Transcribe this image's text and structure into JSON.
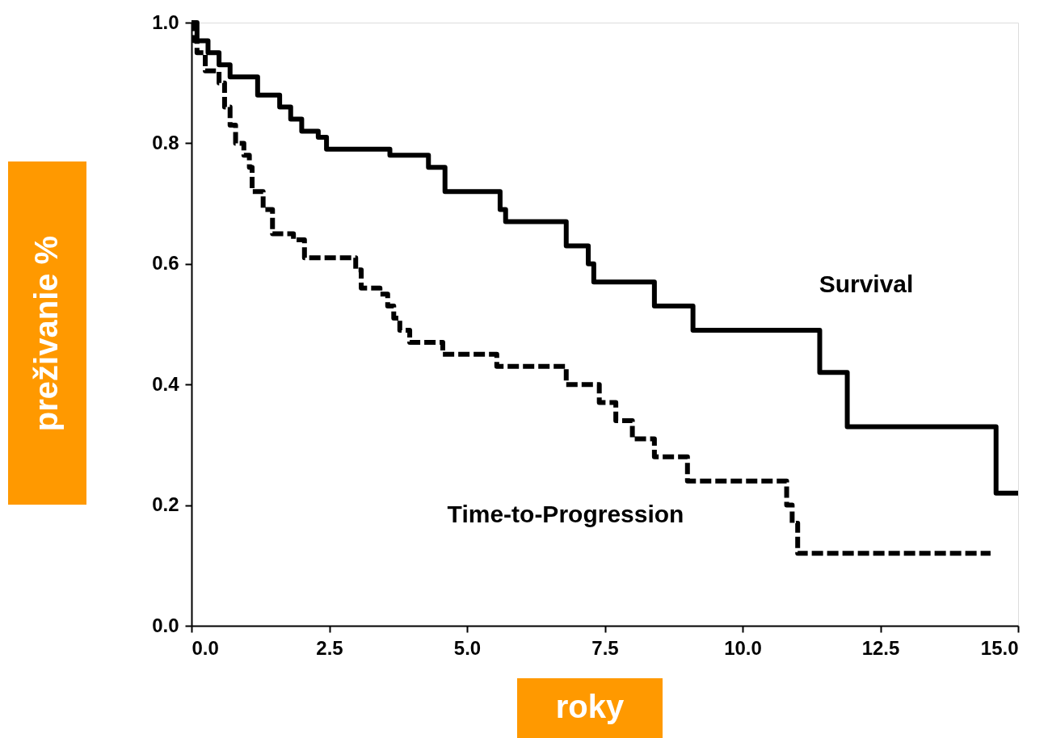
{
  "chart_data": {
    "type": "step",
    "xlabel": "roky",
    "ylabel": "preživanie %",
    "xlim": [
      0,
      15
    ],
    "ylim": [
      0,
      1
    ],
    "xticks": [
      {
        "value": 0,
        "label": "0.0"
      },
      2.5,
      {
        "value": 5,
        "label": "5.0"
      },
      7.5,
      {
        "value": 10,
        "label": "10.0"
      },
      12.5,
      {
        "value": 15,
        "label": "15.0"
      }
    ],
    "yticks": [
      {
        "value": 0,
        "label": "0.0"
      },
      0.2,
      0.4,
      0.6,
      0.8,
      {
        "value": 1,
        "label": "1.0"
      }
    ],
    "grid": false,
    "marker": "none",
    "series": [
      {
        "name": "Survival",
        "color": "#000000",
        "line_style": "solid",
        "x": [
          0,
          0.1,
          0.3,
          0.5,
          0.7,
          1.2,
          1.6,
          1.8,
          2.0,
          2.3,
          2.45,
          3.6,
          4.3,
          4.6,
          5.6,
          5.7,
          6.8,
          7.2,
          7.3,
          8.4,
          9.1,
          11.4,
          11.9,
          14.6,
          15.0
        ],
        "values": [
          1.0,
          0.97,
          0.95,
          0.93,
          0.91,
          0.88,
          0.86,
          0.84,
          0.82,
          0.81,
          0.79,
          0.78,
          0.76,
          0.72,
          0.69,
          0.67,
          0.63,
          0.6,
          0.57,
          0.53,
          0.49,
          0.42,
          0.33,
          0.22,
          0.22
        ]
      },
      {
        "name": "Time-to-Progression",
        "color": "#000000",
        "line_style": "dashed",
        "x": [
          0,
          0.05,
          0.1,
          0.25,
          0.5,
          0.6,
          0.7,
          0.8,
          0.95,
          1.05,
          1.1,
          1.3,
          1.47,
          1.85,
          2.05,
          2.98,
          3.08,
          3.42,
          3.56,
          3.67,
          3.78,
          3.96,
          4.56,
          5.54,
          6.8,
          7.4,
          7.7,
          8.0,
          8.4,
          9.0,
          10.8,
          10.9,
          11.0,
          14.5
        ],
        "values": [
          1.0,
          0.97,
          0.95,
          0.92,
          0.9,
          0.86,
          0.83,
          0.8,
          0.78,
          0.76,
          0.72,
          0.69,
          0.65,
          0.64,
          0.61,
          0.59,
          0.56,
          0.55,
          0.53,
          0.51,
          0.49,
          0.47,
          0.45,
          0.43,
          0.4,
          0.37,
          0.34,
          0.31,
          0.28,
          0.24,
          0.2,
          0.17,
          0.12,
          0.12
        ]
      }
    ]
  }
}
